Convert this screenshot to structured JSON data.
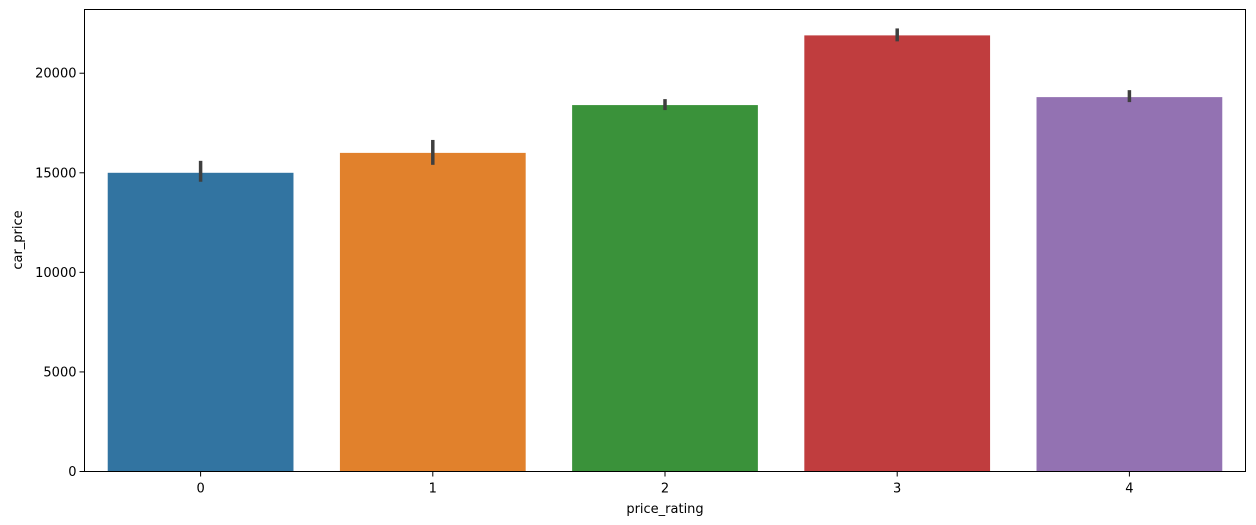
{
  "chart_data": {
    "type": "bar",
    "title": "",
    "xlabel": "price_rating",
    "ylabel": "car_price",
    "categories": [
      "0",
      "1",
      "2",
      "3",
      "4"
    ],
    "values": [
      15000,
      16000,
      18400,
      21900,
      18800
    ],
    "error_bars": [
      [
        14550,
        15600
      ],
      [
        15400,
        16650
      ],
      [
        18150,
        18700
      ],
      [
        21600,
        22250
      ],
      [
        18550,
        19150
      ]
    ],
    "colors": [
      "#3274a1",
      "#e1812c",
      "#3a923a",
      "#c03d3e",
      "#9372b2"
    ],
    "ylim": [
      0,
      23200
    ],
    "yticks": [
      0,
      5000,
      10000,
      15000,
      20000
    ],
    "ytick_labels": [
      "0",
      "5000",
      "10000",
      "15000",
      "20000"
    ],
    "grid": false,
    "legend": "none"
  }
}
